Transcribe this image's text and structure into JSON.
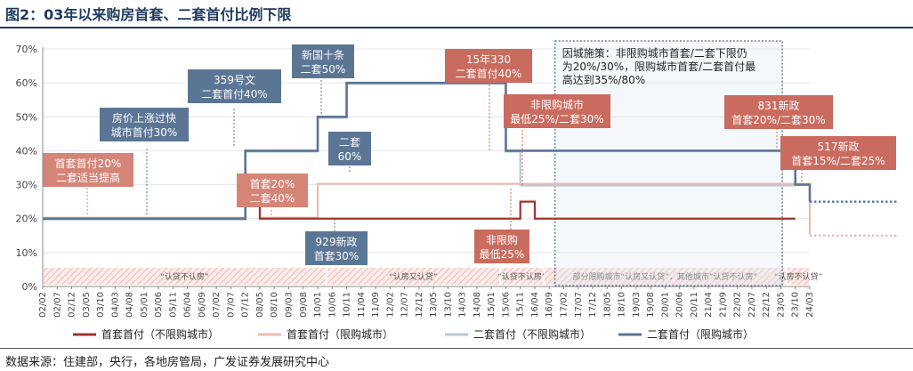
{
  "title": "图2：03年以来购房首套、二套首付比例下限",
  "source": "数据来源：住建部，央行，各地房管局，广发证券发展研究中心",
  "chart_data": {
    "type": "line",
    "title": "03年以来购房首套、二套首付比例下限",
    "xlabel": "",
    "ylabel": "",
    "ylim": [
      0,
      70
    ],
    "yticks": [
      "0%",
      "10%",
      "20%",
      "30%",
      "40%",
      "50%",
      "60%",
      "70%"
    ],
    "categories": [
      "02/02",
      "02/07",
      "02/12",
      "03/05",
      "03/10",
      "04/03",
      "04/08",
      "05/01",
      "05/06",
      "05/11",
      "06/04",
      "06/09",
      "07/02",
      "07/07",
      "07/12",
      "08/05",
      "08/10",
      "09/03",
      "09/08",
      "10/01",
      "10/06",
      "10/11",
      "11/04",
      "11/09",
      "12/02",
      "12/07",
      "12/12",
      "13/05",
      "13/10",
      "14/03",
      "14/08",
      "15/01",
      "15/06",
      "15/11",
      "16/04",
      "16/09",
      "17/02",
      "17/07",
      "17/12",
      "18/05",
      "18/10",
      "19/03",
      "19/08",
      "20/01",
      "20/06",
      "20/11",
      "21/04",
      "21/09",
      "22/02",
      "22/07",
      "22/12",
      "23/05",
      "23/10",
      "24/03"
    ],
    "series": [
      {
        "name": "首套首付（不限购城市）",
        "color": "#a0342a",
        "values": [
          20,
          20,
          20,
          20,
          20,
          20,
          20,
          20,
          20,
          20,
          20,
          20,
          20,
          20,
          30,
          20,
          20,
          20,
          20,
          20,
          20,
          20,
          20,
          20,
          20,
          20,
          20,
          20,
          20,
          20,
          20,
          20,
          20,
          25,
          20,
          20,
          20,
          20,
          20,
          20,
          20,
          20,
          20,
          20,
          20,
          20,
          20,
          20,
          20,
          20,
          20,
          20,
          20,
          null
        ]
      },
      {
        "name": "首套首付（限购城市）",
        "color": "#e8bcb4",
        "values": [
          20,
          20,
          20,
          20,
          20,
          20,
          20,
          20,
          20,
          20,
          20,
          20,
          20,
          20,
          30,
          20,
          20,
          20,
          20,
          30,
          30,
          30,
          30,
          30,
          30,
          30,
          30,
          30,
          30,
          30,
          30,
          30,
          30,
          30,
          30,
          30,
          30,
          30,
          30,
          30,
          30,
          30,
          30,
          30,
          30,
          30,
          30,
          30,
          30,
          30,
          30,
          30,
          30,
          15
        ]
      },
      {
        "name": "二套首付（不限购城市）",
        "color": "#b7c9d8",
        "values": [
          20,
          20,
          20,
          20,
          20,
          20,
          20,
          20,
          20,
          20,
          20,
          20,
          20,
          20,
          40,
          40,
          40,
          40,
          40,
          50,
          50,
          60,
          60,
          60,
          60,
          60,
          60,
          60,
          60,
          60,
          60,
          60,
          40,
          30,
          30,
          30,
          30,
          30,
          30,
          30,
          30,
          30,
          30,
          30,
          30,
          30,
          30,
          30,
          30,
          30,
          30,
          30,
          30,
          null
        ]
      },
      {
        "name": "二套首付（限购城市）",
        "color": "#5b7595",
        "values": [
          20,
          20,
          20,
          20,
          20,
          20,
          20,
          20,
          20,
          20,
          20,
          20,
          20,
          20,
          40,
          40,
          40,
          40,
          40,
          50,
          50,
          60,
          60,
          60,
          60,
          60,
          60,
          60,
          60,
          60,
          60,
          60,
          40,
          40,
          40,
          40,
          40,
          40,
          40,
          40,
          40,
          40,
          40,
          40,
          40,
          40,
          40,
          40,
          40,
          40,
          40,
          40,
          30,
          25
        ]
      }
    ],
    "forecast_dotted": [
      {
        "series": "首套首付（限购城市）",
        "value": 15
      },
      {
        "series": "二套首付（限购城市）",
        "value": 25
      }
    ],
    "annotations": [
      {
        "lines": [
          "首套首付20%",
          "二套适当提高"
        ],
        "color": "#d48578"
      },
      {
        "lines": [
          "房价上涨过快",
          "城市首付30%"
        ],
        "color": "#5b7595"
      },
      {
        "lines": [
          "359号文",
          "二套首付40%"
        ],
        "color": "#5b7595"
      },
      {
        "lines": [
          "首套20%",
          "二套40%"
        ],
        "color": "#d48578"
      },
      {
        "lines": [
          "新国十条",
          "二套50%"
        ],
        "color": "#5b7595"
      },
      {
        "lines": [
          "二套",
          "60%"
        ],
        "color": "#5b7595"
      },
      {
        "lines": [
          "929新政",
          "首套30%"
        ],
        "color": "#5b7595"
      },
      {
        "lines": [
          "15年330",
          "二套首付40%"
        ],
        "color": "#c96b5e"
      },
      {
        "lines": [
          "非限购城市",
          "最低25%/二套30%"
        ],
        "color": "#c96b5e"
      },
      {
        "lines": [
          "非限购",
          "最低25%"
        ],
        "color": "#c96b5e"
      },
      {
        "lines": [
          "831新政",
          "首套20%/二套30%"
        ],
        "color": "#c96b5e"
      },
      {
        "lines": [
          "517新政",
          "首套15%/二套25%"
        ],
        "color": "#c96b5e"
      }
    ],
    "policy_box": {
      "lines": [
        "因城施策：非限购城市首套/二套下限仍",
        "为20%/30%，限购城市首套/二套首付最",
        "高达到35%/80%"
      ]
    },
    "bands": [
      {
        "label": "“认贷不认房”"
      },
      {
        "label": "“认房又认贷”"
      },
      {
        "label": "“认贷不认房”"
      },
      {
        "label": "部分限购城市“认房又认贷”，其他城市“认贷不认房”"
      },
      {
        "label": "“认房不认贷”"
      }
    ]
  }
}
